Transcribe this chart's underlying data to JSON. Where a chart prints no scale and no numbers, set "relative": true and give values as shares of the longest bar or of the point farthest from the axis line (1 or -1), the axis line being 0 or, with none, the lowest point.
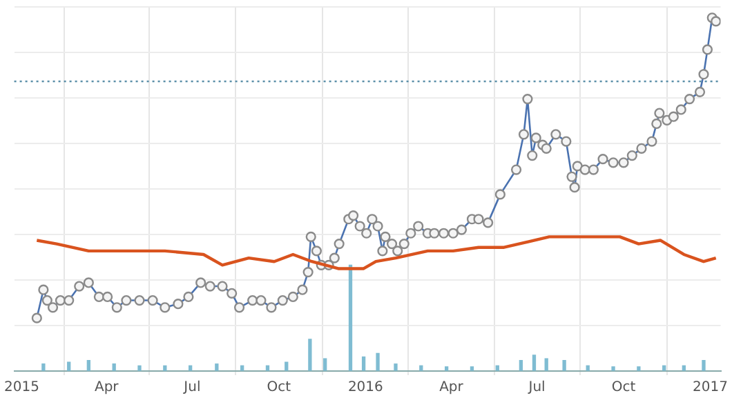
{
  "chart_data": {
    "type": "line",
    "relative": true,
    "grid": true,
    "legend": false,
    "xlim": [
      "2014-12-24",
      "2017-01-12"
    ],
    "xticks": [
      {
        "value": "2015-01-01",
        "label": "2015"
      },
      {
        "value": "2015-04-01",
        "label": "Apr"
      },
      {
        "value": "2015-07-01",
        "label": "Jul"
      },
      {
        "value": "2015-10-01",
        "label": "Oct"
      },
      {
        "value": "2016-01-01",
        "label": "2016"
      },
      {
        "value": "2016-04-01",
        "label": "Apr"
      },
      {
        "value": "2016-07-01",
        "label": "Jul"
      },
      {
        "value": "2016-10-01",
        "label": "Oct"
      },
      {
        "value": "2017-01-01",
        "label": "2017"
      }
    ],
    "ref_lines": [
      {
        "axis": "y",
        "value": 0.82,
        "line_style": "dotted",
        "color": "#5b8fa8"
      }
    ],
    "series": [
      {
        "type": "bar",
        "color": "#7fbcd2",
        "x": [
          "2015-01-24",
          "2015-02-20",
          "2015-03-13",
          "2015-04-09",
          "2015-05-06",
          "2015-06-02",
          "2015-06-29",
          "2015-07-27",
          "2015-08-23",
          "2015-09-19",
          "2015-10-09",
          "2015-11-03",
          "2015-11-19",
          "2015-12-16",
          "2015-12-30",
          "2016-01-14",
          "2016-02-02",
          "2016-02-29",
          "2016-03-27",
          "2016-04-23",
          "2016-05-20",
          "2016-06-14",
          "2016-06-28",
          "2016-07-11",
          "2016-07-30",
          "2016-08-24",
          "2016-09-20",
          "2016-10-17",
          "2016-11-13",
          "2016-12-04",
          "2016-12-25"
        ],
        "values": [
          0.02,
          0.025,
          0.03,
          0.02,
          0.015,
          0.015,
          0.015,
          0.02,
          0.015,
          0.015,
          0.025,
          0.09,
          0.035,
          0.3,
          0.04,
          0.05,
          0.02,
          0.015,
          0.012,
          0.012,
          0.015,
          0.03,
          0.045,
          0.035,
          0.03,
          0.015,
          0.012,
          0.012,
          0.015,
          0.015,
          0.03
        ]
      },
      {
        "color": "#d9531e",
        "marker": "none",
        "x": [
          "2015-01-17",
          "2015-02-07",
          "2015-03-13",
          "2015-04-09",
          "2015-05-13",
          "2015-06-02",
          "2015-07-13",
          "2015-08-02",
          "2015-08-30",
          "2015-09-26",
          "2015-10-16",
          "2015-11-05",
          "2015-12-03",
          "2015-12-30",
          "2016-01-12",
          "2016-02-02",
          "2016-03-07",
          "2016-04-03",
          "2016-04-30",
          "2016-05-27",
          "2016-07-14",
          "2016-08-24",
          "2016-09-27",
          "2016-10-17",
          "2016-11-09",
          "2016-12-04",
          "2016-12-25",
          "2017-01-07"
        ],
        "values": [
          0.37,
          0.36,
          0.34,
          0.34,
          0.34,
          0.34,
          0.33,
          0.3,
          0.32,
          0.31,
          0.33,
          0.31,
          0.29,
          0.29,
          0.31,
          0.32,
          0.34,
          0.34,
          0.35,
          0.35,
          0.38,
          0.38,
          0.38,
          0.36,
          0.37,
          0.33,
          0.31,
          0.32
        ]
      },
      {
        "color": "#4a72b0",
        "marker": "circle",
        "x": [
          "2015-01-17",
          "2015-01-24",
          "2015-01-28",
          "2015-02-03",
          "2015-02-11",
          "2015-02-20",
          "2015-03-03",
          "2015-03-13",
          "2015-03-24",
          "2015-04-02",
          "2015-04-12",
          "2015-04-22",
          "2015-05-06",
          "2015-05-20",
          "2015-06-02",
          "2015-06-16",
          "2015-06-27",
          "2015-07-10",
          "2015-07-20",
          "2015-08-02",
          "2015-08-12",
          "2015-08-20",
          "2015-09-03",
          "2015-09-12",
          "2015-09-23",
          "2015-10-05",
          "2015-10-16",
          "2015-10-26",
          "2015-11-01",
          "2015-11-04",
          "2015-11-10",
          "2015-11-15",
          "2015-11-23",
          "2015-11-29",
          "2015-12-04",
          "2015-12-14",
          "2015-12-19",
          "2015-12-26",
          "2016-01-02",
          "2016-01-08",
          "2016-01-14",
          "2016-01-19",
          "2016-01-22",
          "2016-01-29",
          "2016-02-04",
          "2016-02-11",
          "2016-02-18",
          "2016-02-26",
          "2016-03-07",
          "2016-03-14",
          "2016-03-24",
          "2016-04-03",
          "2016-04-12",
          "2016-04-23",
          "2016-04-30",
          "2016-05-10",
          "2016-05-23",
          "2016-06-09",
          "2016-06-17",
          "2016-06-21",
          "2016-06-26",
          "2016-06-30",
          "2016-07-07",
          "2016-07-11",
          "2016-07-21",
          "2016-08-01",
          "2016-08-07",
          "2016-08-10",
          "2016-08-13",
          "2016-08-21",
          "2016-08-30",
          "2016-09-09",
          "2016-09-20",
          "2016-10-01",
          "2016-10-10",
          "2016-10-20",
          "2016-10-31",
          "2016-11-05",
          "2016-11-08",
          "2016-11-16",
          "2016-11-23",
          "2016-12-01",
          "2016-12-10",
          "2016-12-21",
          "2016-12-25",
          "2016-12-29",
          "2017-01-03",
          "2017-01-07"
        ],
        "values": [
          0.15,
          0.23,
          0.2,
          0.18,
          0.2,
          0.2,
          0.24,
          0.25,
          0.21,
          0.21,
          0.18,
          0.2,
          0.2,
          0.2,
          0.18,
          0.19,
          0.21,
          0.25,
          0.24,
          0.24,
          0.22,
          0.18,
          0.2,
          0.2,
          0.18,
          0.2,
          0.21,
          0.23,
          0.28,
          0.38,
          0.34,
          0.3,
          0.3,
          0.32,
          0.36,
          0.43,
          0.44,
          0.41,
          0.39,
          0.43,
          0.41,
          0.34,
          0.38,
          0.36,
          0.34,
          0.36,
          0.39,
          0.41,
          0.39,
          0.39,
          0.39,
          0.39,
          0.4,
          0.43,
          0.43,
          0.42,
          0.5,
          0.57,
          0.67,
          0.77,
          0.61,
          0.66,
          0.64,
          0.63,
          0.67,
          0.65,
          0.55,
          0.52,
          0.58,
          0.57,
          0.57,
          0.6,
          0.59,
          0.59,
          0.61,
          0.63,
          0.65,
          0.7,
          0.73,
          0.71,
          0.72,
          0.74,
          0.77,
          0.79,
          0.84,
          0.91,
          1,
          0.99
        ]
      }
    ]
  }
}
